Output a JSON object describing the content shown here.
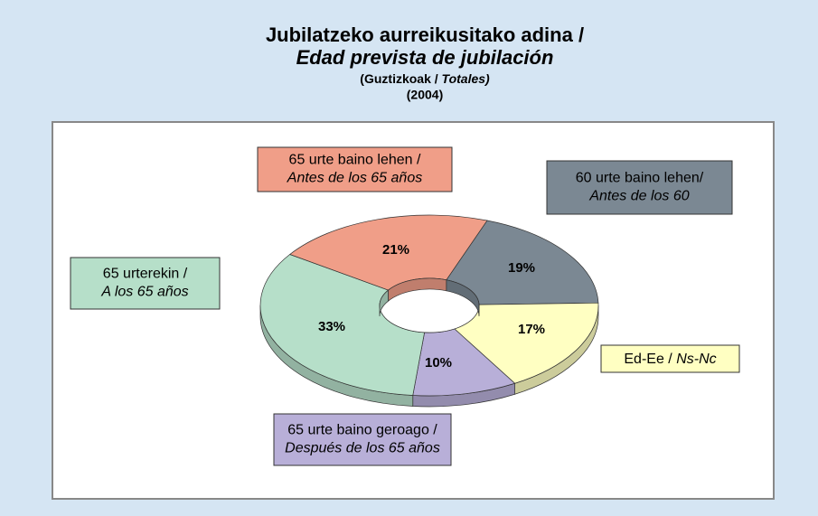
{
  "chart_data": {
    "type": "pie",
    "donut": true,
    "title": [
      "Jubilatzeko aurreikusitako adina  /",
      "Edad prevista de jubilación"
    ],
    "subtitle": [
      "(Guztizkoak /",
      "Totales)"
    ],
    "date": "(2004)",
    "categories": [
      [
        "60 urte baino lehen/",
        "Antes de los 60"
      ],
      [
        "Ed-Ee /",
        "Ns-Nc"
      ],
      [
        "65 urte baino geroago /",
        "Después de los 65 años"
      ],
      [
        "65 urterekin /",
        "A los 65 años"
      ],
      [
        "65 urte baino lehen /",
        "Antes de los 65 años"
      ]
    ],
    "values": [
      19,
      17,
      10,
      33,
      21
    ],
    "value_labels": [
      "19%",
      "17%",
      "10%",
      "33%",
      "21%"
    ],
    "colors": [
      "#7b8893",
      "#ffffc2",
      "#b8afd8",
      "#b6dfc9",
      "#f09e88"
    ]
  }
}
